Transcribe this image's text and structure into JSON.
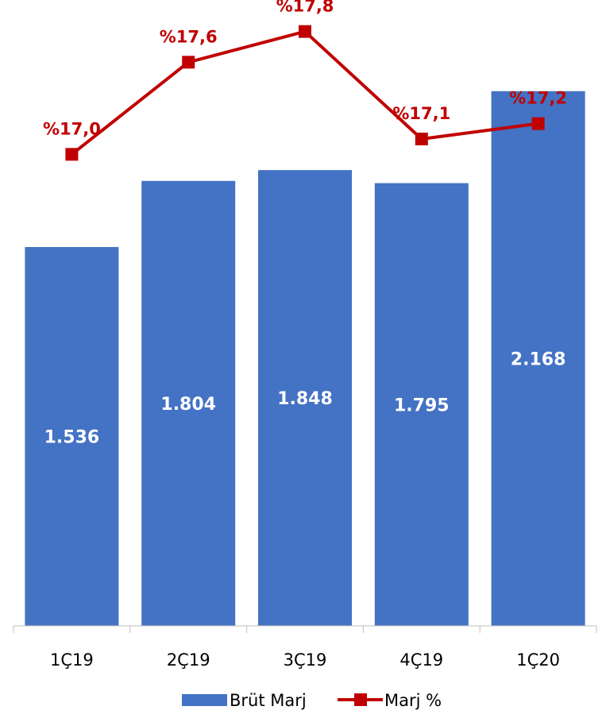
{
  "chart_data": {
    "type": "bar",
    "categories": [
      "1Ç19",
      "2Ç19",
      "3Ç19",
      "4Ç19",
      "1Ç20"
    ],
    "series": [
      {
        "name": "Brüt Marj",
        "type": "bar",
        "values": [
          1536,
          1804,
          1848,
          1795,
          2168
        ],
        "labels": [
          "1.536",
          "1.804",
          "1.848",
          "1.795",
          "2.168"
        ],
        "color": "#4472C4"
      },
      {
        "name": "Marj %",
        "type": "line",
        "values": [
          17.0,
          17.6,
          17.8,
          17.1,
          17.2
        ],
        "labels": [
          "%17,0",
          "%17,6",
          "%17,8",
          "%17,1",
          "%17,2"
        ],
        "color": "#C00000",
        "marker": "square"
      }
    ],
    "y_primary_range": [
      0,
      2280
    ],
    "y_secondary_range": [
      16.5,
      18.0
    ],
    "grid": false,
    "legend_position": "bottom"
  }
}
